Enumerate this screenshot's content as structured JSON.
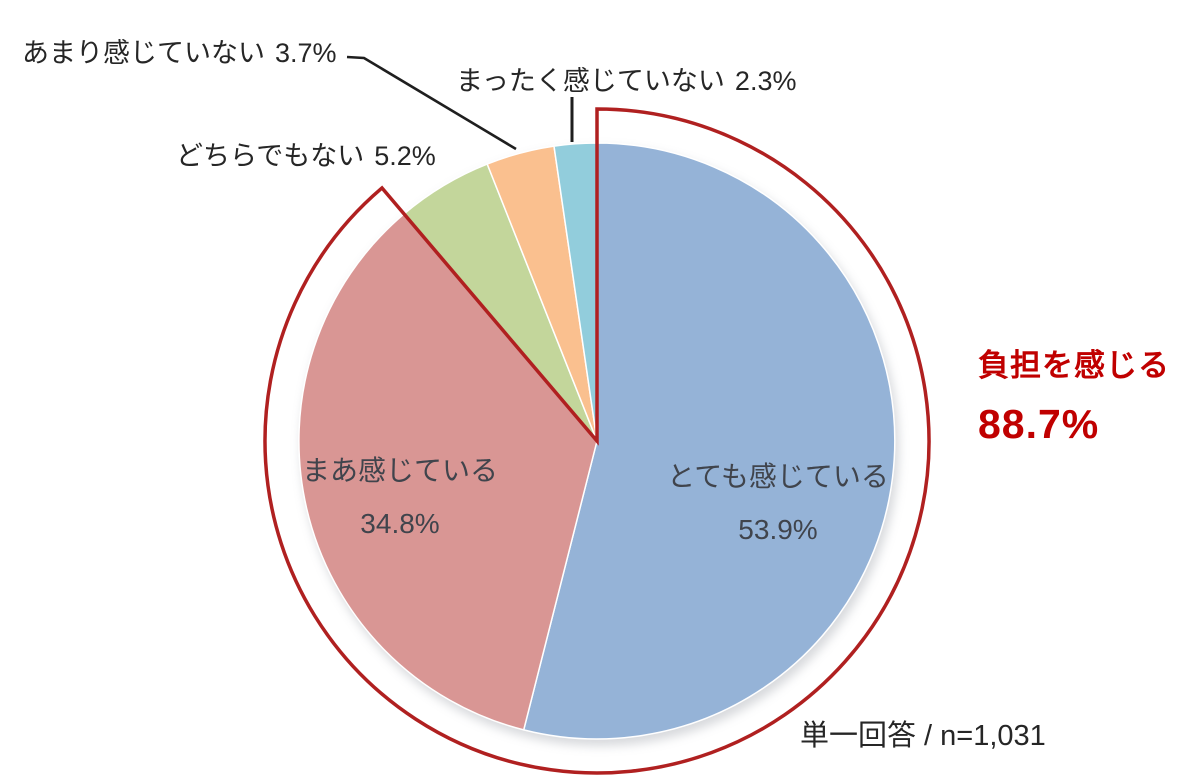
{
  "page": {
    "background": "#ffffff"
  },
  "chart_data": {
    "type": "pie",
    "unit": "%",
    "start_angle_deg": 0,
    "direction": "clockwise",
    "legend_position": "none",
    "slices": [
      {
        "id": "totemo",
        "label": "とても感じている",
        "value": 53.9,
        "pct": "53.9%",
        "color": "#95B3D7",
        "label_position": "inside"
      },
      {
        "id": "maa",
        "label": "まあ感じている",
        "value": 34.8,
        "pct": "34.8%",
        "color": "#D99694",
        "label_position": "inside"
      },
      {
        "id": "dochira",
        "label": "どちらでもない",
        "value": 5.2,
        "pct": "5.2%",
        "color": "#C3D69B",
        "label_position": "outside"
      },
      {
        "id": "amari",
        "label": "あまり感じていない",
        "value": 3.7,
        "pct": "3.7%",
        "color": "#FAC08F",
        "label_position": "outside-with-leader-line"
      },
      {
        "id": "mattaku",
        "label": "まったく感じていない",
        "value": 2.3,
        "pct": "2.3%",
        "color": "#92CDDC",
        "label_position": "outside-with-leader-line"
      }
    ],
    "highlight": {
      "label": "負担を感じる",
      "value": 88.7,
      "pct": "88.7%",
      "covers_slices": [
        "totemo",
        "maa"
      ],
      "outline_color": "#B02020",
      "text_color": "#C00000"
    },
    "note": "単一回答 / n=1,031"
  },
  "colors": {
    "slice_blue": "#95B3D7",
    "slice_red": "#D99694",
    "slice_green": "#C3D69B",
    "slice_orange": "#FAC08F",
    "slice_cyan": "#92CDDC",
    "highlight_outline": "#B02020",
    "highlight_text": "#C00000",
    "label_text": "#262626",
    "inside_label_text": "#40444c",
    "leader_line": "#1f1f1f"
  }
}
